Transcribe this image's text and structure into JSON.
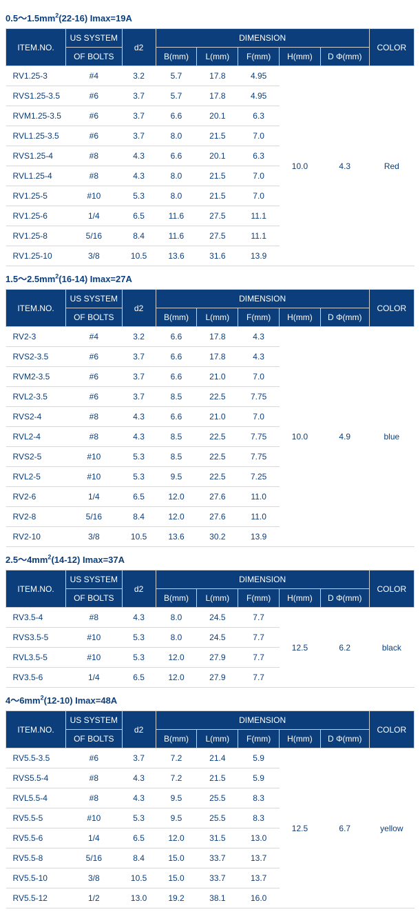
{
  "headers": {
    "item": "ITEM.NO.",
    "bolts_l1": "US SYSTEM",
    "bolts_l2": "OF BOLTS",
    "d2": "d2",
    "dim": "DIMENSION",
    "b": "B(mm)",
    "l": "L(mm)",
    "f": "F(mm)",
    "h": "H(mm)",
    "dphi": "D Φ(mm)",
    "color": "COLOR"
  },
  "sections": [
    {
      "titlePrefix": "0.5～1.5mm",
      "titleSup": "2",
      "titleSuffix": "(22-16) Imax=19A",
      "group": {
        "h": "10.0",
        "dphi": "4.3",
        "color": "Red"
      },
      "rows": [
        {
          "item": "RV1.25-3",
          "bolt": "#4",
          "d2": "3.2",
          "b": "5.7",
          "l": "17.8",
          "f": "4.95"
        },
        {
          "item": "RVS1.25-3.5",
          "bolt": "#6",
          "d2": "3.7",
          "b": "5.7",
          "l": "17.8",
          "f": "4.95"
        },
        {
          "item": "RVM1.25-3.5",
          "bolt": "#6",
          "d2": "3.7",
          "b": "6.6",
          "l": "20.1",
          "f": "6.3"
        },
        {
          "item": "RVL1.25-3.5",
          "bolt": "#6",
          "d2": "3.7",
          "b": "8.0",
          "l": "21.5",
          "f": "7.0"
        },
        {
          "item": "RVS1.25-4",
          "bolt": "#8",
          "d2": "4.3",
          "b": "6.6",
          "l": "20.1",
          "f": "6.3"
        },
        {
          "item": "RVL1.25-4",
          "bolt": "#8",
          "d2": "4.3",
          "b": "8.0",
          "l": "21.5",
          "f": "7.0"
        },
        {
          "item": "RV1.25-5",
          "bolt": "#10",
          "d2": "5.3",
          "b": "8.0",
          "l": "21.5",
          "f": "7.0"
        },
        {
          "item": "RV1.25-6",
          "bolt": "1/4",
          "d2": "6.5",
          "b": "11.6",
          "l": "27.5",
          "f": "11.1"
        },
        {
          "item": "RV1.25-8",
          "bolt": "5/16",
          "d2": "8.4",
          "b": "11.6",
          "l": "27.5",
          "f": "11.1"
        },
        {
          "item": "RV1.25-10",
          "bolt": "3/8",
          "d2": "10.5",
          "b": "13.6",
          "l": "31.6",
          "f": "13.9"
        }
      ]
    },
    {
      "titlePrefix": "1.5～2.5mm",
      "titleSup": "2",
      "titleSuffix": "(16-14) Imax=27A",
      "group": {
        "h": "10.0",
        "dphi": "4.9",
        "color": "blue"
      },
      "rows": [
        {
          "item": "RV2-3",
          "bolt": "#4",
          "d2": "3.2",
          "b": "6.6",
          "l": "17.8",
          "f": "4.3"
        },
        {
          "item": "RVS2-3.5",
          "bolt": "#6",
          "d2": "3.7",
          "b": "6.6",
          "l": "17.8",
          "f": "4.3"
        },
        {
          "item": "RVM2-3.5",
          "bolt": "#6",
          "d2": "3.7",
          "b": "6.6",
          "l": "21.0",
          "f": "7.0"
        },
        {
          "item": "RVL2-3.5",
          "bolt": "#6",
          "d2": "3.7",
          "b": "8.5",
          "l": "22.5",
          "f": "7.75"
        },
        {
          "item": "RVS2-4",
          "bolt": "#8",
          "d2": "4.3",
          "b": "6.6",
          "l": "21.0",
          "f": "7.0"
        },
        {
          "item": "RVL2-4",
          "bolt": "#8",
          "d2": "4.3",
          "b": "8.5",
          "l": "22.5",
          "f": "7.75"
        },
        {
          "item": "RVS2-5",
          "bolt": "#10",
          "d2": "5.3",
          "b": "8.5",
          "l": "22.5",
          "f": "7.75"
        },
        {
          "item": "RVL2-5",
          "bolt": "#10",
          "d2": "5.3",
          "b": "9.5",
          "l": "22.5",
          "f": "7.25"
        },
        {
          "item": "RV2-6",
          "bolt": "1/4",
          "d2": "6.5",
          "b": "12.0",
          "l": "27.6",
          "f": "11.0"
        },
        {
          "item": "RV2-8",
          "bolt": "5/16",
          "d2": "8.4",
          "b": "12.0",
          "l": "27.6",
          "f": "11.0"
        },
        {
          "item": "RV2-10",
          "bolt": "3/8",
          "d2": "10.5",
          "b": "13.6",
          "l": "30.2",
          "f": "13.9"
        }
      ]
    },
    {
      "titlePrefix": "2.5～4mm",
      "titleSup": "2",
      "titleSuffix": "(14-12) Imax=37A",
      "group": {
        "h": "12.5",
        "dphi": "6.2",
        "color": "black"
      },
      "rows": [
        {
          "item": "RV3.5-4",
          "bolt": "#8",
          "d2": "4.3",
          "b": "8.0",
          "l": "24.5",
          "f": "7.7"
        },
        {
          "item": "RVS3.5-5",
          "bolt": "#10",
          "d2": "5.3",
          "b": "8.0",
          "l": "24.5",
          "f": "7.7"
        },
        {
          "item": "RVL3.5-5",
          "bolt": "#10",
          "d2": "5.3",
          "b": "12.0",
          "l": "27.9",
          "f": "7.7"
        },
        {
          "item": "RV3.5-6",
          "bolt": "1/4",
          "d2": "6.5",
          "b": "12.0",
          "l": "27.9",
          "f": "7.7"
        }
      ]
    },
    {
      "titlePrefix": "4～6mm",
      "titleSup": "2",
      "titleSuffix": "(12-10) Imax=48A",
      "group": {
        "h": "12.5",
        "dphi": "6.7",
        "color": "yellow"
      },
      "rows": [
        {
          "item": "RV5.5-3.5",
          "bolt": "#6",
          "d2": "3.7",
          "b": "7.2",
          "l": "21.4",
          "f": "5.9"
        },
        {
          "item": "RVS5.5-4",
          "bolt": "#8",
          "d2": "4.3",
          "b": "7.2",
          "l": "21.5",
          "f": "5.9"
        },
        {
          "item": "RVL5.5-4",
          "bolt": "#8",
          "d2": "4.3",
          "b": "9.5",
          "l": "25.5",
          "f": "8.3"
        },
        {
          "item": "RV5.5-5",
          "bolt": "#10",
          "d2": "5.3",
          "b": "9.5",
          "l": "25.5",
          "f": "8.3"
        },
        {
          "item": "RV5.5-6",
          "bolt": "1/4",
          "d2": "6.5",
          "b": "12.0",
          "l": "31.5",
          "f": "13.0"
        },
        {
          "item": "RV5.5-8",
          "bolt": "5/16",
          "d2": "8.4",
          "b": "15.0",
          "l": "33.7",
          "f": "13.7"
        },
        {
          "item": "RV5.5-10",
          "bolt": "3/8",
          "d2": "10.5",
          "b": "15.0",
          "l": "33.7",
          "f": "13.7"
        },
        {
          "item": "RV5.5-12",
          "bolt": "1/2",
          "d2": "13.0",
          "b": "19.2",
          "l": "38.1",
          "f": "16.0"
        }
      ]
    }
  ]
}
